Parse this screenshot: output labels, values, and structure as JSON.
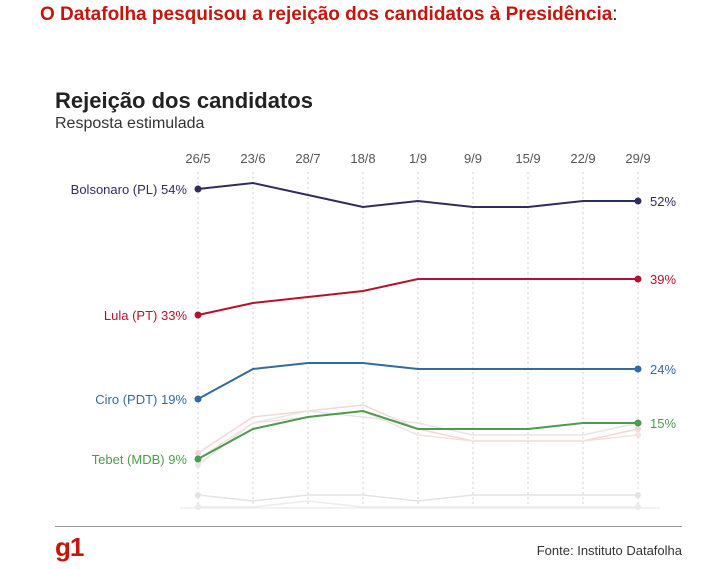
{
  "headline": {
    "text": "O Datafolha pesquisou a rejeição dos candidatos à Presidência",
    "suffix": ":"
  },
  "footer": {
    "logo": "g1",
    "source": "Fonte: Instituto Datafolha"
  },
  "chart_data": {
    "type": "line",
    "title": "Rejeição dos candidatos",
    "subtitle": "Resposta estimulada",
    "xlabel": "",
    "ylabel": "",
    "ylim": [
      0,
      56
    ],
    "grid": "vertical dotted lines at each date",
    "x": [
      "26/5",
      "23/6",
      "28/7",
      "18/8",
      "1/9",
      "9/9",
      "15/9",
      "22/9",
      "29/9"
    ],
    "series": [
      {
        "name": "Bolsonaro (PL)",
        "color": "#2e2d5e",
        "highlight": true,
        "start_label": "Bolsonaro (PL) 54%",
        "end_label": "52%",
        "values": [
          54,
          55,
          53,
          51,
          52,
          51,
          51,
          52,
          52
        ]
      },
      {
        "name": "Lula (PT)",
        "color": "#b5132b",
        "highlight": true,
        "start_label": "Lula (PT) 33%",
        "end_label": "39%",
        "values": [
          33,
          35,
          36,
          37,
          39,
          39,
          39,
          39,
          39
        ]
      },
      {
        "name": "Ciro (PDT)",
        "color": "#336aa1",
        "highlight": true,
        "start_label": "Ciro (PDT) 19%",
        "end_label": "24%",
        "values": [
          19,
          24,
          25,
          25,
          24,
          24,
          24,
          24,
          24
        ]
      },
      {
        "name": "Tebet (MDB)",
        "color": "#4e9a4e",
        "highlight": true,
        "start_label": "Tebet (MDB) 9%",
        "end_label": "15%",
        "values": [
          9,
          14,
          16,
          17,
          14,
          14,
          14,
          15,
          15
        ]
      },
      {
        "name": "other-1",
        "color": "#f2d8d4",
        "highlight": false,
        "values": [
          10,
          16,
          17,
          18,
          14,
          12,
          12,
          12,
          14
        ]
      },
      {
        "name": "other-2",
        "color": "#f4e2de",
        "highlight": false,
        "values": [
          9,
          15,
          16,
          17,
          13,
          12,
          12,
          12,
          13
        ]
      },
      {
        "name": "other-3",
        "color": "#e6e6e6",
        "highlight": false,
        "values": [
          8,
          15,
          17,
          16,
          15,
          13,
          13,
          13,
          15
        ]
      },
      {
        "name": "other-4",
        "color": "#e3e3e3",
        "highlight": false,
        "values": [
          3,
          2,
          3,
          3,
          2,
          3,
          3,
          3,
          3
        ]
      },
      {
        "name": "other-5",
        "color": "#ebebeb",
        "highlight": false,
        "values": [
          1,
          1,
          2,
          1,
          1,
          1,
          1,
          1,
          1
        ]
      }
    ]
  }
}
